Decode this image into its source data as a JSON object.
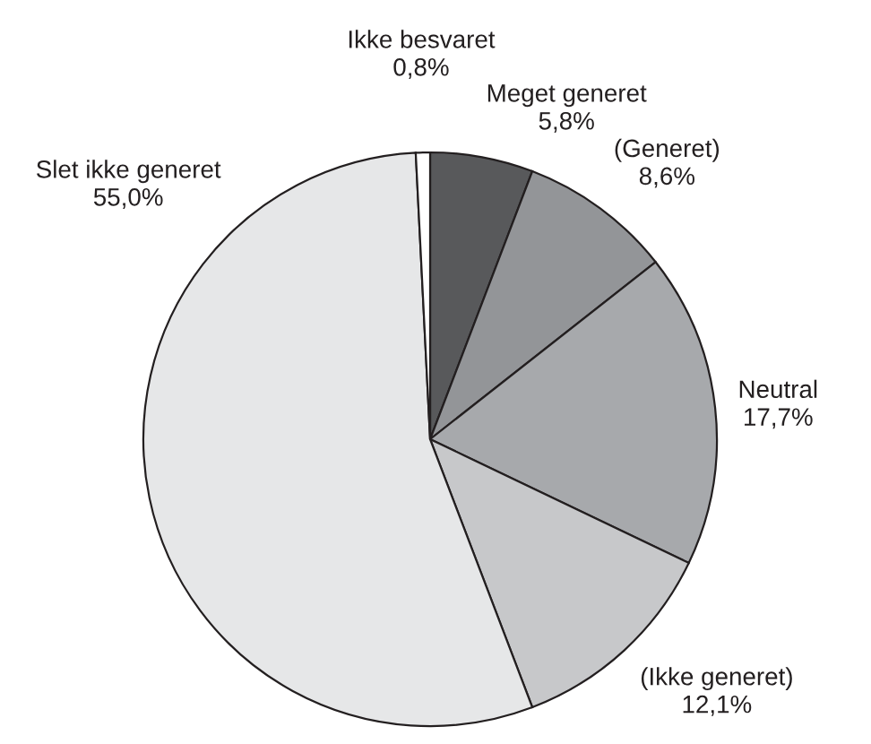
{
  "chart_data": {
    "type": "pie",
    "categories": [
      "Meget generet",
      "(Generet)",
      "Neutral",
      "(Ikke generet)",
      "Slet ikke generet",
      "Ikke besvaret"
    ],
    "values": [
      5.8,
      8.6,
      17.7,
      12.1,
      55.0,
      0.8
    ],
    "colors": [
      "#58595b",
      "#939598",
      "#a7a9ac",
      "#c7c8ca",
      "#e6e7e8",
      "#ffffff"
    ],
    "value_labels": [
      "5,8%",
      "8,6%",
      "17,7%",
      "12,1%",
      "55,0%",
      "0,8%"
    ]
  }
}
